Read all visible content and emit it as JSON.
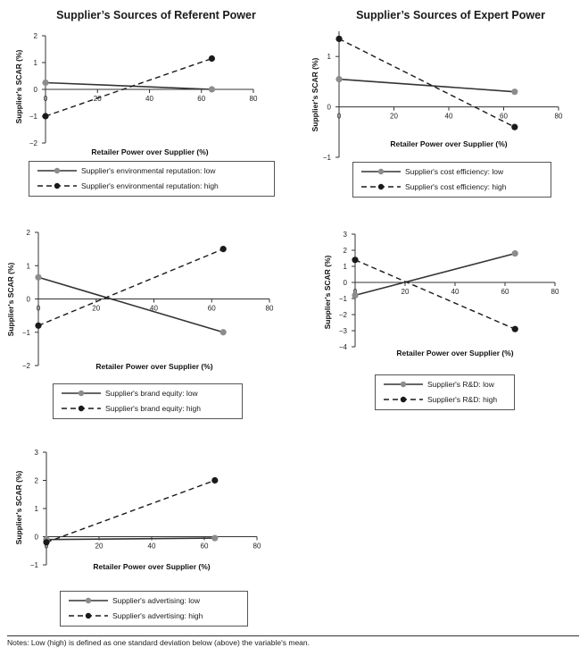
{
  "titles": {
    "left": "Supplier’s Sources of Referent Power",
    "right": "Supplier’s Sources of Expert Power"
  },
  "colors": {
    "low": "#8c8c8c",
    "high": "#1a1a1a",
    "line_low": "#333333",
    "axis": "#333333"
  },
  "notes": "Notes: Low (high) is defined as one standard deviation below (above) the variable's mean.",
  "chart_data": [
    {
      "id": "env",
      "type": "line",
      "title": "",
      "xlabel": "Retailer Power over Supplier (%)",
      "ylabel": "Supplier's SCAR (%)",
      "xlim": [
        0,
        80
      ],
      "ylim": [
        -2,
        2
      ],
      "xticks": [
        0,
        20,
        40,
        60,
        80
      ],
      "yticks": [
        -2,
        -1,
        0,
        1,
        2
      ],
      "series": [
        {
          "name": "Supplier's environmental reputation: low",
          "style": "low",
          "x": [
            0,
            64
          ],
          "y": [
            0.25,
            0.0
          ]
        },
        {
          "name": "Supplier's environmental reputation: high",
          "style": "high",
          "x": [
            0,
            64
          ],
          "y": [
            -1.0,
            1.15
          ]
        }
      ]
    },
    {
      "id": "cost",
      "type": "line",
      "title": "",
      "xlabel": "Retailer Power over Supplier (%)",
      "ylabel": "Supplier's SCAR (%)",
      "xlim": [
        0,
        80
      ],
      "ylim": [
        -1,
        1.5
      ],
      "xticks": [
        0,
        20,
        40,
        60,
        80
      ],
      "yticks": [
        -1,
        0,
        1
      ],
      "series": [
        {
          "name": "Supplier's cost efficiency: low",
          "style": "low",
          "x": [
            0,
            64
          ],
          "y": [
            0.55,
            0.3
          ]
        },
        {
          "name": "Supplier's cost efficiency: high",
          "style": "high",
          "x": [
            0,
            64
          ],
          "y": [
            1.35,
            -0.4
          ]
        }
      ]
    },
    {
      "id": "brand",
      "type": "line",
      "title": "",
      "xlabel": "Retailer Power over Supplier (%)",
      "ylabel": "Supplier's SCAR (%)",
      "xlim": [
        0,
        80
      ],
      "ylim": [
        -2,
        2
      ],
      "xticks": [
        0,
        20,
        40,
        60,
        80
      ],
      "yticks": [
        -2,
        -1,
        0,
        1,
        2
      ],
      "series": [
        {
          "name": "Supplier's brand equity: low",
          "style": "low",
          "x": [
            0,
            64
          ],
          "y": [
            0.65,
            -1.0
          ]
        },
        {
          "name": "Supplier's brand equity: high",
          "style": "high",
          "x": [
            0,
            64
          ],
          "y": [
            -0.8,
            1.5
          ]
        }
      ]
    },
    {
      "id": "rd",
      "type": "line",
      "title": "",
      "xlabel": "Retailer Power over Supplier (%)",
      "ylabel": "Supplier's SCAR (%)",
      "xlim": [
        0,
        80
      ],
      "ylim": [
        -4,
        3
      ],
      "xticks": [
        0,
        20,
        40,
        60,
        80
      ],
      "yticks": [
        -4,
        -3,
        -2,
        -1,
        0,
        1,
        2,
        3
      ],
      "series": [
        {
          "name": "Supplier's R&D: low",
          "style": "low",
          "x": [
            0,
            64
          ],
          "y": [
            -0.8,
            1.8
          ]
        },
        {
          "name": "Supplier's R&D: high",
          "style": "high",
          "x": [
            0,
            64
          ],
          "y": [
            1.4,
            -2.9
          ]
        }
      ]
    },
    {
      "id": "adv",
      "type": "line",
      "title": "",
      "xlabel": "Retailer Power over Supplier (%)",
      "ylabel": "Supplier's SCAR (%)",
      "xlim": [
        0,
        80
      ],
      "ylim": [
        -1,
        3
      ],
      "xticks": [
        0,
        20,
        40,
        60,
        80
      ],
      "yticks": [
        -1,
        0,
        1,
        2,
        3
      ],
      "series": [
        {
          "name": "Supplier's advertising: low",
          "style": "low",
          "x": [
            0,
            64
          ],
          "y": [
            -0.1,
            -0.05
          ]
        },
        {
          "name": "Supplier's advertising: high",
          "style": "high",
          "x": [
            0,
            64
          ],
          "y": [
            -0.2,
            2.0
          ]
        }
      ]
    }
  ]
}
